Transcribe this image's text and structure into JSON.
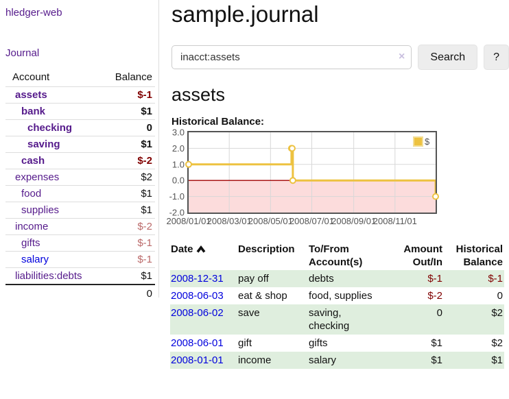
{
  "app": {
    "brand": "hledger-web",
    "nav_journal": "Journal"
  },
  "sidebar": {
    "columns": {
      "account": "Account",
      "balance": "Balance"
    },
    "accounts": [
      {
        "name": "assets",
        "depth": 1,
        "balance": "$-1",
        "bold": true
      },
      {
        "name": "bank",
        "depth": 2,
        "balance": "$1",
        "bold": true
      },
      {
        "name": "checking",
        "depth": 3,
        "balance": "0",
        "bold": true
      },
      {
        "name": "saving",
        "depth": 3,
        "balance": "$1",
        "bold": true
      },
      {
        "name": "cash",
        "depth": 2,
        "balance": "$-2",
        "bold": true
      },
      {
        "name": "expenses",
        "depth": 1,
        "balance": "$2",
        "bold": false
      },
      {
        "name": "food",
        "depth": 2,
        "balance": "$1",
        "bold": false
      },
      {
        "name": "supplies",
        "depth": 2,
        "balance": "$1",
        "bold": false
      },
      {
        "name": "income",
        "depth": 1,
        "balance": "$-2",
        "bold": false
      },
      {
        "name": "gifts",
        "depth": 2,
        "balance": "$-1",
        "bold": false
      },
      {
        "name": "salary",
        "depth": 2,
        "balance": "$-1",
        "bold": false,
        "unvisited": true
      },
      {
        "name": "liabilities:debts",
        "depth": 1,
        "balance": "$1",
        "bold": false
      }
    ],
    "total": "0"
  },
  "header": {
    "title": "sample.journal"
  },
  "search": {
    "value": "inacct:assets",
    "clear_icon": "×",
    "button": "Search",
    "help_button": "?"
  },
  "account_page": {
    "title": "assets",
    "chart_label": "Historical Balance:"
  },
  "chart_data": {
    "type": "line",
    "title": "Historical Balance",
    "step": true,
    "legend": "$",
    "legend_position": "top-right",
    "x_range": [
      "2008-01-01",
      "2008-12-31"
    ],
    "ylim": [
      -2,
      3
    ],
    "y_ticks": [
      "3.0",
      "2.0",
      "1.0",
      "0.0",
      "-1.0",
      "-2.0"
    ],
    "x_ticks": [
      {
        "date": "2008-01-01",
        "label": "2008/01/01"
      },
      {
        "date": "2008-03-01",
        "label": "2008/03/01"
      },
      {
        "date": "2008-05-01",
        "label": "2008/05/01"
      },
      {
        "date": "2008-07-01",
        "label": "2008/07/01"
      },
      {
        "date": "2008-09-01",
        "label": "2008/09/01"
      },
      {
        "date": "2008-11-01",
        "label": "2008/11/01"
      }
    ],
    "series": [
      {
        "name": "$",
        "color": "#edc240",
        "points": [
          [
            "2008-01-01",
            1
          ],
          [
            "2008-06-01",
            2
          ],
          [
            "2008-06-02",
            2
          ],
          [
            "2008-06-03",
            0
          ],
          [
            "2008-12-31",
            -1
          ]
        ]
      }
    ],
    "grid": true,
    "grid_color": "#d8d8d8",
    "negative_fill": "#fcdcdc",
    "zero_line_color": "#a00000",
    "border_color": "#545454",
    "axis_color": "#545454"
  },
  "register": {
    "columns": {
      "date": "Date",
      "description": "Description",
      "accounts": "To/From Account(s)",
      "amount": "Amount Out/In",
      "balance": "Historical Balance"
    },
    "rows": [
      {
        "date": "2008-12-31",
        "description": "pay off",
        "accounts": "debts",
        "amount": "$-1",
        "balance": "$-1"
      },
      {
        "date": "2008-06-03",
        "description": "eat & shop",
        "accounts": "food, supplies",
        "amount": "$-2",
        "balance": "0"
      },
      {
        "date": "2008-06-02",
        "description": "save",
        "accounts": "saving, checking",
        "amount": "0",
        "balance": "$2"
      },
      {
        "date": "2008-06-01",
        "description": "gift",
        "accounts": "gifts",
        "amount": "$1",
        "balance": "$2"
      },
      {
        "date": "2008-01-01",
        "description": "income",
        "accounts": "salary",
        "amount": "$1",
        "balance": "$1"
      }
    ]
  }
}
